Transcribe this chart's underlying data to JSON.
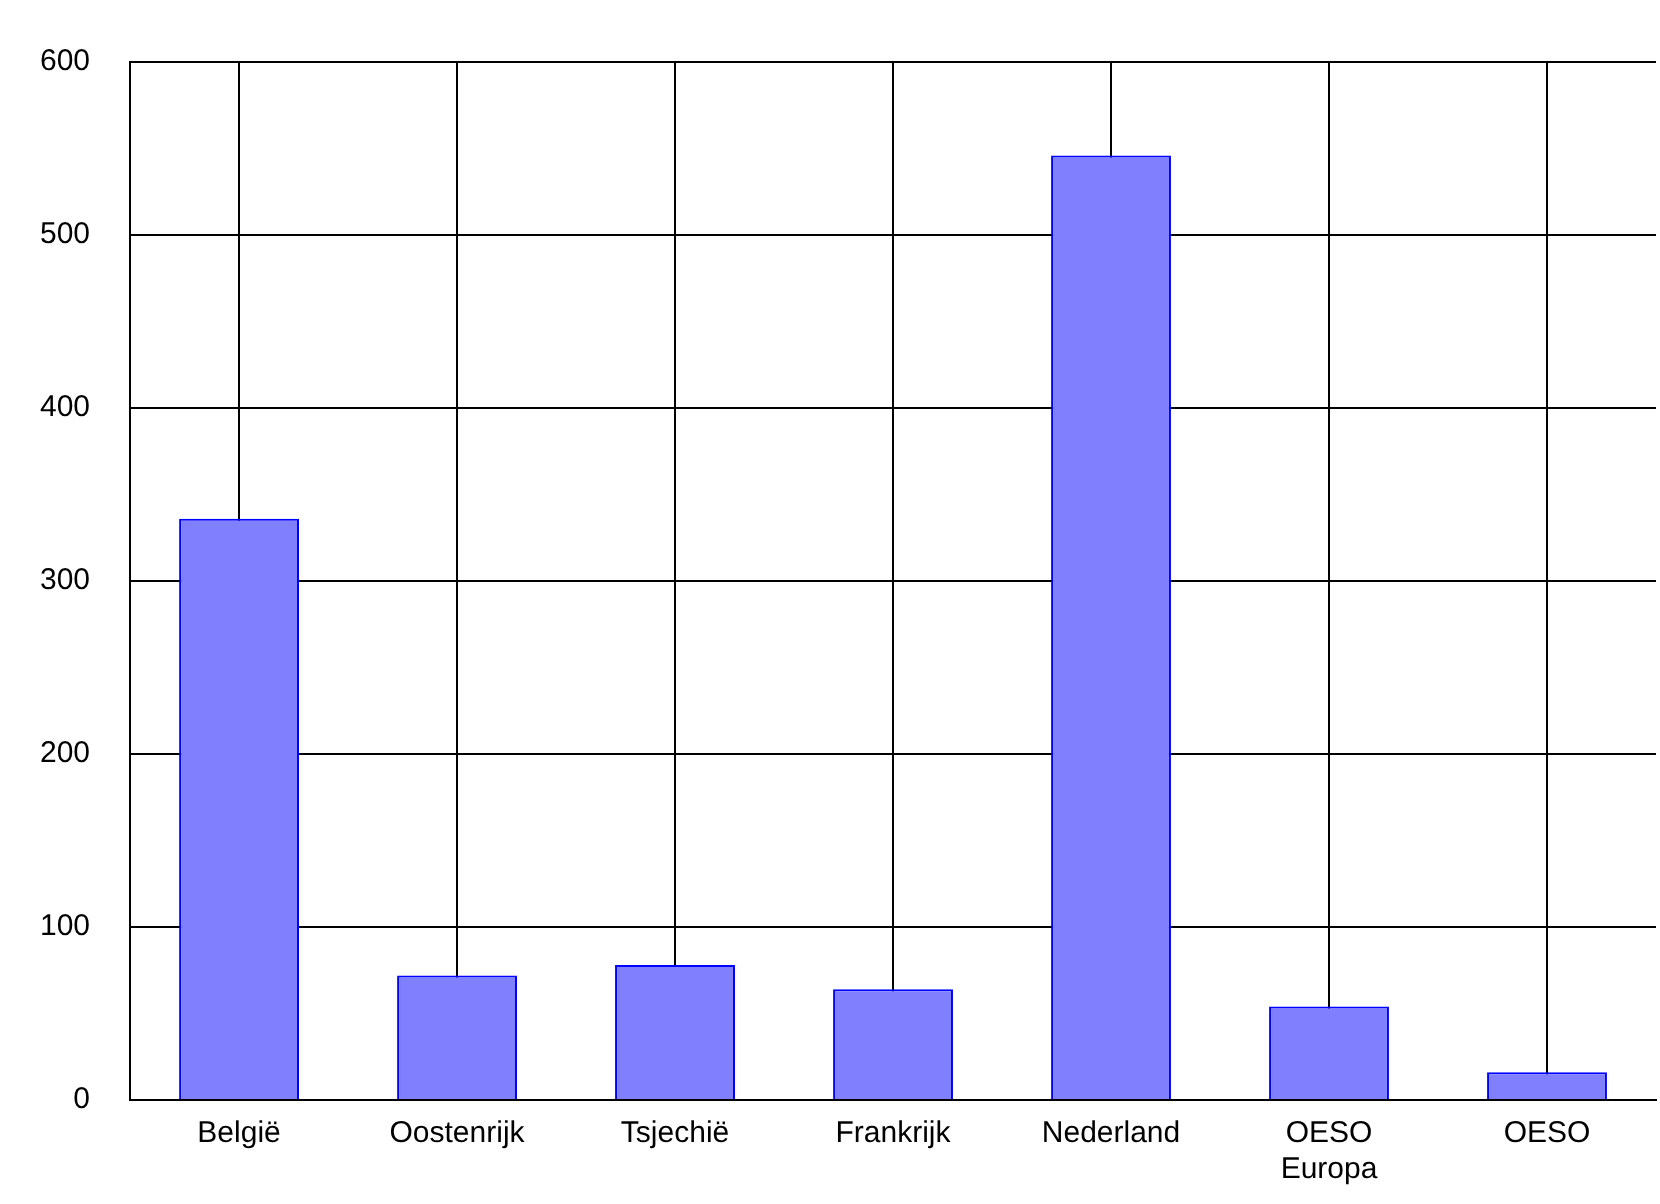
{
  "chart_data": {
    "type": "bar",
    "categories": [
      "België",
      "Oostenrijk",
      "Tsjechië",
      "Frankrijk",
      "Nederland",
      "OESO Europa",
      "OESO"
    ],
    "values": [
      336,
      72,
      78,
      64,
      546,
      54,
      16
    ],
    "color": "#8080ff",
    "ylim": [
      0,
      600
    ],
    "yticks": [
      0,
      100,
      200,
      300,
      400,
      500,
      600
    ],
    "grid": true,
    "legend": false
  }
}
